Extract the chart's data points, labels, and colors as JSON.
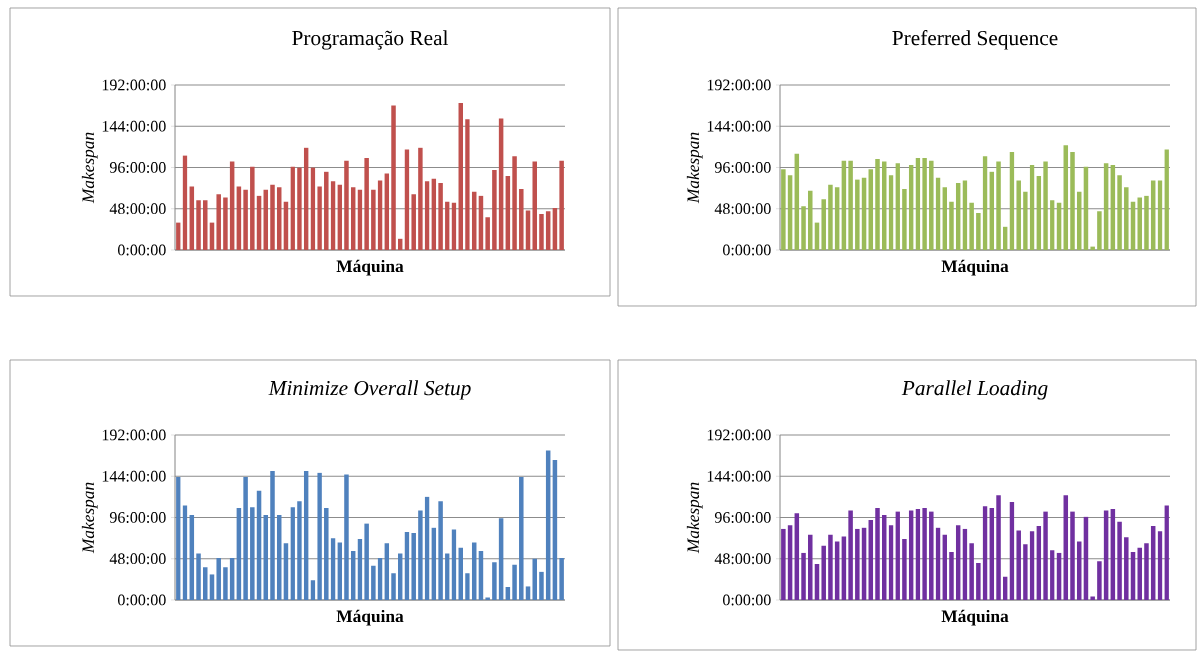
{
  "chart_data": [
    {
      "type": "bar",
      "title": "Programação Real",
      "xlabel": "Máquina",
      "ylabel": "Makespan",
      "categories": [
        null,
        null,
        null,
        null,
        null,
        null,
        null,
        null,
        null,
        null,
        null,
        null,
        null,
        null,
        null,
        null,
        null,
        null,
        null,
        null,
        null,
        null,
        null,
        null,
        null,
        null,
        null,
        null,
        null,
        null,
        null,
        null,
        null,
        null,
        null,
        null,
        null,
        null,
        null,
        null,
        null,
        null,
        null,
        null,
        null,
        null,
        null,
        null,
        null,
        null,
        null,
        null,
        null,
        null,
        null,
        null,
        null,
        null
      ],
      "values": [
        32,
        110,
        74,
        58,
        58,
        32,
        65,
        61,
        103,
        74,
        70,
        97,
        63,
        70,
        76,
        73,
        56,
        97,
        96,
        119,
        96,
        74,
        91,
        80,
        76,
        104,
        73,
        70,
        107,
        70,
        81,
        89,
        168,
        13,
        117,
        65,
        119,
        80,
        83,
        78,
        56,
        55,
        171,
        152,
        68,
        63,
        38,
        93,
        153,
        86,
        109,
        71,
        46,
        103,
        42,
        45,
        49,
        104
      ],
      "color": "#c0504d",
      "ylim": [
        0,
        192
      ],
      "yticks": [
        {
          "value": 0,
          "label": "0:00:00"
        },
        {
          "value": 48,
          "label": "48:00:00"
        },
        {
          "value": 96,
          "label": "96:00:00"
        },
        {
          "value": 144,
          "label": "144:00:00"
        },
        {
          "value": 192,
          "label": "192:00:00"
        }
      ],
      "grid": "y"
    },
    {
      "type": "bar",
      "title": "Preferred Sequence",
      "xlabel": "Máquina",
      "ylabel": "Makespan",
      "categories": [
        null,
        null,
        null,
        null,
        null,
        null,
        null,
        null,
        null,
        null,
        null,
        null,
        null,
        null,
        null,
        null,
        null,
        null,
        null,
        null,
        null,
        null,
        null,
        null,
        null,
        null,
        null,
        null,
        null,
        null,
        null,
        null,
        null,
        null,
        null,
        null,
        null,
        null,
        null,
        null,
        null,
        null,
        null,
        null,
        null,
        null,
        null,
        null,
        null,
        null,
        null,
        null,
        null,
        null,
        null,
        null,
        null,
        null
      ],
      "values": [
        94,
        87,
        112,
        51,
        69,
        32,
        59,
        76,
        73,
        104,
        104,
        82,
        84,
        94,
        106,
        103,
        87,
        101,
        71,
        99,
        107,
        107,
        104,
        84,
        73,
        56,
        78,
        81,
        55,
        43,
        109,
        91,
        103,
        27,
        114,
        81,
        68,
        99,
        86,
        103,
        58,
        55,
        122,
        114,
        68,
        97,
        4,
        45,
        101,
        99,
        87,
        73,
        56,
        61,
        63,
        81,
        81,
        117
      ],
      "color": "#9bbb59",
      "ylim": [
        0,
        192
      ],
      "yticks": [
        {
          "value": 0,
          "label": "0:00:00"
        },
        {
          "value": 48,
          "label": "48:00:00"
        },
        {
          "value": 96,
          "label": "96:00:00"
        },
        {
          "value": 144,
          "label": "144:00:00"
        },
        {
          "value": 192,
          "label": "192:00:00"
        }
      ],
      "grid": "y"
    },
    {
      "type": "bar",
      "title": "Minimize Overall Setup",
      "xlabel": "Máquina",
      "ylabel": "Makespan",
      "categories": [
        null,
        null,
        null,
        null,
        null,
        null,
        null,
        null,
        null,
        null,
        null,
        null,
        null,
        null,
        null,
        null,
        null,
        null,
        null,
        null,
        null,
        null,
        null,
        null,
        null,
        null,
        null,
        null,
        null,
        null,
        null,
        null,
        null,
        null,
        null,
        null,
        null,
        null,
        null,
        null,
        null,
        null,
        null,
        null,
        null,
        null,
        null,
        null,
        null,
        null,
        null,
        null,
        null,
        null,
        null,
        null,
        null,
        null
      ],
      "values": [
        143,
        110,
        99,
        54,
        38,
        30,
        49,
        38,
        49,
        107,
        143,
        108,
        127,
        99,
        150,
        99,
        66,
        108,
        115,
        150,
        23,
        148,
        107,
        72,
        67,
        146,
        57,
        71,
        89,
        40,
        49,
        66,
        31,
        54,
        79,
        78,
        104,
        120,
        84,
        115,
        54,
        82,
        61,
        31,
        67,
        57,
        3,
        44,
        95,
        15,
        41,
        143,
        16,
        48,
        33,
        174,
        163,
        49
      ],
      "color": "#4f81bd",
      "ylim": [
        0,
        192
      ],
      "yticks": [
        {
          "value": 0,
          "label": "0:00:00"
        },
        {
          "value": 48,
          "label": "48:00:00"
        },
        {
          "value": 96,
          "label": "96:00:00"
        },
        {
          "value": 144,
          "label": "144:00:00"
        },
        {
          "value": 192,
          "label": "192:00:00"
        }
      ],
      "grid": "y"
    },
    {
      "type": "bar",
      "title": "Parallel Loading",
      "xlabel": "Máquina",
      "ylabel": "Makespan",
      "categories": [
        null,
        null,
        null,
        null,
        null,
        null,
        null,
        null,
        null,
        null,
        null,
        null,
        null,
        null,
        null,
        null,
        null,
        null,
        null,
        null,
        null,
        null,
        null,
        null,
        null,
        null,
        null,
        null,
        null,
        null,
        null,
        null,
        null,
        null,
        null,
        null,
        null,
        null,
        null,
        null,
        null,
        null,
        null,
        null,
        null,
        null,
        null,
        null,
        null,
        null,
        null,
        null,
        null,
        null,
        null,
        null,
        null,
        null
      ],
      "values": [
        83,
        87,
        101,
        55,
        76,
        42,
        63,
        76,
        68,
        74,
        104,
        83,
        84,
        93,
        107,
        99,
        87,
        103,
        71,
        104,
        106,
        107,
        103,
        84,
        76,
        56,
        87,
        83,
        66,
        43,
        109,
        107,
        122,
        27,
        114,
        81,
        65,
        80,
        86,
        103,
        58,
        55,
        122,
        103,
        68,
        97,
        4,
        45,
        104,
        106,
        91,
        73,
        56,
        61,
        66,
        86,
        80,
        110
      ],
      "color": "#7030a0",
      "ylim": [
        0,
        192
      ],
      "yticks": [
        {
          "value": 0,
          "label": "0:00:00"
        },
        {
          "value": 48,
          "label": "48:00:00"
        },
        {
          "value": 96,
          "label": "96:00:00"
        },
        {
          "value": 144,
          "label": "144:00:00"
        },
        {
          "value": 192,
          "label": "192:00:00"
        }
      ],
      "grid": "y"
    }
  ]
}
